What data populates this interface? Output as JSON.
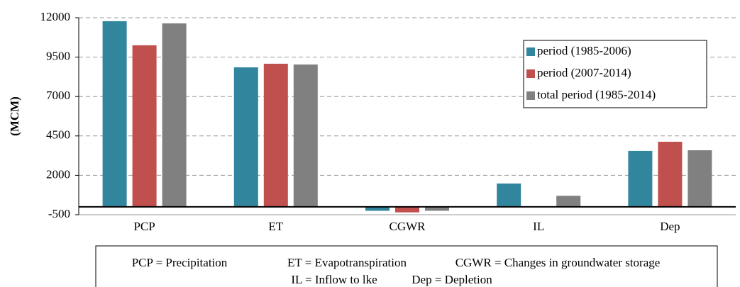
{
  "chart_data": {
    "type": "bar",
    "y_label": "(MCM)",
    "categories": [
      "PCP",
      "ET",
      "CGWR",
      "IL",
      "Dep"
    ],
    "series": [
      {
        "name": "period (1985-2006)",
        "color": "#31859c",
        "values": [
          11780,
          8850,
          -250,
          1480,
          3550
        ]
      },
      {
        "name": "period (2007-2014)",
        "color": "#c0504d",
        "values": [
          10250,
          9080,
          -350,
          0,
          4130
        ]
      },
      {
        "name": "total period (1985-2014)",
        "color": "#808080",
        "values": [
          11640,
          9030,
          -250,
          700,
          3590
        ]
      }
    ],
    "ylim": [
      -500,
      12000
    ],
    "yticks": [
      -500,
      2000,
      4500,
      7000,
      9500,
      12000
    ],
    "grid": true,
    "legend": "upper right",
    "annotations": [
      "PCP = Precipitation",
      "ET = Evapotranspiration",
      "CGWR = Changes in groundwater storage",
      "IL = Inflow to lke",
      "Dep = Depletion"
    ]
  }
}
